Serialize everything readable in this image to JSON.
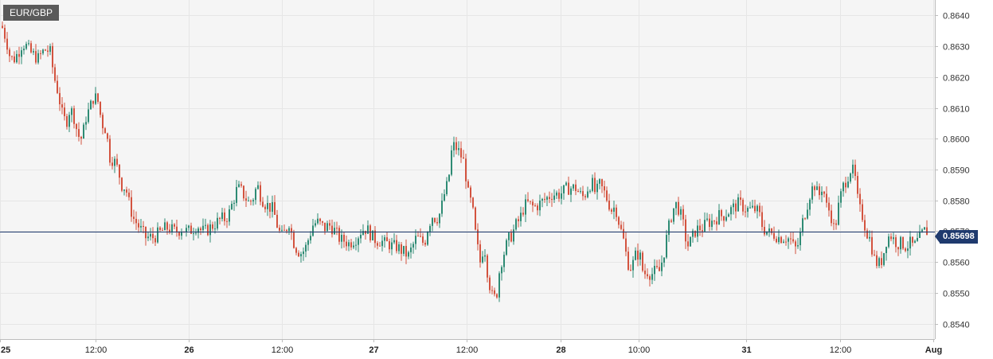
{
  "chart_data": {
    "type": "candlestick",
    "symbol": "EUR/GBP",
    "current_price": "0.85698",
    "ylim": [
      0.8535,
      0.8645
    ],
    "yticks": [
      "0.8540",
      "0.8550",
      "0.8560",
      "0.8570",
      "0.8580",
      "0.8590",
      "0.8600",
      "0.8610",
      "0.8620",
      "0.8630",
      "0.8640"
    ],
    "xticks": [
      {
        "label": "25",
        "bold": true
      },
      {
        "label": "12:00",
        "bold": false
      },
      {
        "label": "26",
        "bold": true
      },
      {
        "label": "12:00",
        "bold": false
      },
      {
        "label": "27",
        "bold": true
      },
      {
        "label": "12:00",
        "bold": false
      },
      {
        "label": "28",
        "bold": true
      },
      {
        "label": "10:00",
        "bold": false
      },
      {
        "label": "31",
        "bold": true
      },
      {
        "label": "12:00",
        "bold": false
      },
      {
        "label": "Aug",
        "bold": true
      }
    ],
    "path": [
      [
        0,
        0.8637
      ],
      [
        5,
        0.8636
      ],
      [
        10,
        0.8632
      ],
      [
        15,
        0.8626
      ],
      [
        20,
        0.8626
      ],
      [
        25,
        0.8628
      ],
      [
        30,
        0.8631
      ],
      [
        35,
        0.863
      ],
      [
        40,
        0.8628
      ],
      [
        45,
        0.8627
      ],
      [
        50,
        0.8626
      ],
      [
        55,
        0.8628
      ],
      [
        60,
        0.8629
      ],
      [
        65,
        0.8628
      ],
      [
        70,
        0.862
      ],
      [
        75,
        0.8615
      ],
      [
        80,
        0.8608
      ],
      [
        85,
        0.8605
      ],
      [
        90,
        0.861
      ],
      [
        95,
        0.8607
      ],
      [
        100,
        0.8601
      ],
      [
        105,
        0.86
      ],
      [
        110,
        0.8607
      ],
      [
        115,
        0.861
      ],
      [
        120,
        0.8614
      ],
      [
        125,
        0.8612
      ],
      [
        130,
        0.8605
      ],
      [
        135,
        0.8603
      ],
      [
        140,
        0.8594
      ],
      [
        145,
        0.8593
      ],
      [
        150,
        0.859
      ],
      [
        155,
        0.8585
      ],
      [
        160,
        0.8584
      ],
      [
        165,
        0.8578
      ],
      [
        170,
        0.8574
      ],
      [
        175,
        0.8572
      ],
      [
        180,
        0.857
      ],
      [
        185,
        0.8568
      ],
      [
        190,
        0.8568
      ],
      [
        195,
        0.8568
      ],
      [
        200,
        0.8569
      ],
      [
        205,
        0.857
      ],
      [
        210,
        0.8571
      ],
      [
        215,
        0.8571
      ],
      [
        220,
        0.857
      ],
      [
        225,
        0.857
      ],
      [
        230,
        0.8571
      ],
      [
        235,
        0.857
      ],
      [
        240,
        0.857
      ],
      [
        245,
        0.8571
      ],
      [
        250,
        0.8572
      ],
      [
        255,
        0.857
      ],
      [
        260,
        0.857
      ],
      [
        265,
        0.8571
      ],
      [
        270,
        0.8572
      ],
      [
        275,
        0.8573
      ],
      [
        280,
        0.8574
      ],
      [
        285,
        0.8574
      ],
      [
        290,
        0.8576
      ],
      [
        295,
        0.858
      ],
      [
        300,
        0.8584
      ],
      [
        305,
        0.8583
      ],
      [
        310,
        0.8581
      ],
      [
        315,
        0.8579
      ],
      [
        320,
        0.8581
      ],
      [
        325,
        0.8585
      ],
      [
        330,
        0.8581
      ],
      [
        335,
        0.8579
      ],
      [
        340,
        0.8578
      ],
      [
        345,
        0.8577
      ],
      [
        350,
        0.8572
      ],
      [
        355,
        0.8568
      ],
      [
        360,
        0.857
      ],
      [
        365,
        0.8573
      ],
      [
        370,
        0.8567
      ],
      [
        375,
        0.8564
      ],
      [
        380,
        0.8563
      ],
      [
        385,
        0.8564
      ],
      [
        390,
        0.8568
      ],
      [
        395,
        0.8572
      ],
      [
        400,
        0.8573
      ],
      [
        405,
        0.8572
      ],
      [
        410,
        0.8571
      ],
      [
        415,
        0.8572
      ],
      [
        420,
        0.8571
      ],
      [
        425,
        0.8569
      ],
      [
        430,
        0.8567
      ],
      [
        435,
        0.8567
      ],
      [
        440,
        0.8566
      ],
      [
        445,
        0.8567
      ],
      [
        450,
        0.8568
      ],
      [
        455,
        0.857
      ],
      [
        460,
        0.8571
      ],
      [
        465,
        0.857
      ],
      [
        470,
        0.8568
      ],
      [
        475,
        0.8567
      ],
      [
        480,
        0.8567
      ],
      [
        485,
        0.8566
      ],
      [
        490,
        0.8566
      ],
      [
        495,
        0.8565
      ],
      [
        500,
        0.8565
      ],
      [
        505,
        0.8564
      ],
      [
        510,
        0.8563
      ],
      [
        515,
        0.8562
      ],
      [
        520,
        0.8565
      ],
      [
        525,
        0.8568
      ],
      [
        530,
        0.8567
      ],
      [
        535,
        0.8566
      ],
      [
        540,
        0.8572
      ],
      [
        545,
        0.8575
      ],
      [
        550,
        0.8574
      ],
      [
        555,
        0.8576
      ],
      [
        560,
        0.8582
      ],
      [
        565,
        0.8586
      ],
      [
        570,
        0.8598
      ],
      [
        575,
        0.8597
      ],
      [
        580,
        0.8595
      ],
      [
        585,
        0.8592
      ],
      [
        590,
        0.8582
      ],
      [
        595,
        0.8578
      ],
      [
        600,
        0.8567
      ],
      [
        605,
        0.856
      ],
      [
        610,
        0.8566
      ],
      [
        615,
        0.8555
      ],
      [
        620,
        0.8549
      ],
      [
        625,
        0.8548
      ],
      [
        630,
        0.8559
      ],
      [
        635,
        0.8563
      ],
      [
        640,
        0.8567
      ],
      [
        645,
        0.8569
      ],
      [
        650,
        0.8572
      ],
      [
        655,
        0.8574
      ],
      [
        660,
        0.8578
      ],
      [
        665,
        0.8579
      ],
      [
        670,
        0.8578
      ],
      [
        675,
        0.8578
      ],
      [
        680,
        0.8579
      ],
      [
        685,
        0.858
      ],
      [
        690,
        0.8581
      ],
      [
        695,
        0.8582
      ],
      [
        700,
        0.8582
      ],
      [
        705,
        0.8582
      ],
      [
        710,
        0.8583
      ],
      [
        715,
        0.8584
      ],
      [
        720,
        0.8584
      ],
      [
        725,
        0.8584
      ],
      [
        730,
        0.8582
      ],
      [
        735,
        0.8581
      ],
      [
        740,
        0.8584
      ],
      [
        745,
        0.8586
      ],
      [
        750,
        0.8582
      ],
      [
        755,
        0.8585
      ],
      [
        760,
        0.8583
      ],
      [
        765,
        0.858
      ],
      [
        770,
        0.8577
      ],
      [
        775,
        0.8578
      ],
      [
        780,
        0.8572
      ],
      [
        785,
        0.8567
      ],
      [
        790,
        0.856
      ],
      [
        795,
        0.8558
      ],
      [
        800,
        0.8562
      ],
      [
        805,
        0.8563
      ],
      [
        810,
        0.8556
      ],
      [
        815,
        0.8557
      ],
      [
        820,
        0.8556
      ],
      [
        825,
        0.8557
      ],
      [
        830,
        0.8557
      ],
      [
        835,
        0.8562
      ],
      [
        840,
        0.8569
      ],
      [
        845,
        0.8575
      ],
      [
        850,
        0.8579
      ],
      [
        855,
        0.8577
      ],
      [
        860,
        0.8572
      ],
      [
        865,
        0.8565
      ],
      [
        870,
        0.8567
      ],
      [
        875,
        0.857
      ],
      [
        880,
        0.8571
      ],
      [
        885,
        0.8571
      ],
      [
        890,
        0.8573
      ],
      [
        895,
        0.8573
      ],
      [
        900,
        0.8574
      ],
      [
        905,
        0.8575
      ],
      [
        910,
        0.8575
      ],
      [
        915,
        0.8576
      ],
      [
        920,
        0.8577
      ],
      [
        925,
        0.8578
      ],
      [
        930,
        0.8579
      ],
      [
        935,
        0.8578
      ],
      [
        940,
        0.8577
      ],
      [
        945,
        0.8577
      ],
      [
        950,
        0.8577
      ],
      [
        955,
        0.8576
      ],
      [
        960,
        0.8571
      ],
      [
        965,
        0.857
      ],
      [
        970,
        0.8569
      ],
      [
        975,
        0.8569
      ],
      [
        980,
        0.8568
      ],
      [
        985,
        0.8568
      ],
      [
        990,
        0.8568
      ],
      [
        995,
        0.8567
      ],
      [
        1000,
        0.8564
      ],
      [
        1005,
        0.8566
      ],
      [
        1010,
        0.8573
      ],
      [
        1015,
        0.8578
      ],
      [
        1020,
        0.8583
      ],
      [
        1025,
        0.8585
      ],
      [
        1030,
        0.8581
      ],
      [
        1035,
        0.8585
      ],
      [
        1040,
        0.8578
      ],
      [
        1045,
        0.8576
      ],
      [
        1050,
        0.857
      ],
      [
        1055,
        0.8578
      ],
      [
        1060,
        0.8584
      ],
      [
        1065,
        0.8587
      ],
      [
        1070,
        0.859
      ],
      [
        1075,
        0.8589
      ],
      [
        1080,
        0.8578
      ],
      [
        1085,
        0.8575
      ],
      [
        1090,
        0.857
      ],
      [
        1095,
        0.8567
      ],
      [
        1100,
        0.8561
      ],
      [
        1105,
        0.8559
      ],
      [
        1110,
        0.8561
      ],
      [
        1115,
        0.8567
      ],
      [
        1120,
        0.8569
      ],
      [
        1125,
        0.8567
      ],
      [
        1130,
        0.8566
      ],
      [
        1135,
        0.8566
      ],
      [
        1140,
        0.8565
      ],
      [
        1145,
        0.8566
      ],
      [
        1150,
        0.8565
      ],
      [
        1155,
        0.8567
      ],
      [
        1160,
        0.8569
      ],
      [
        1163,
        0.857
      ]
    ]
  },
  "colors": {
    "up": "#2e8b74",
    "down": "#d3533f",
    "grid": "#e6e6e6",
    "background": "#f5f5f5",
    "price_line": "#1f3a6e"
  }
}
